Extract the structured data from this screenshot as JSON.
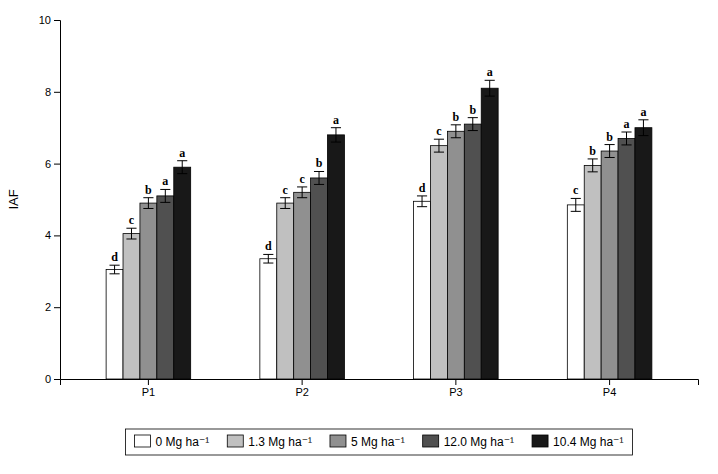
{
  "chart_data": {
    "type": "bar",
    "categories": [
      "P1",
      "P2",
      "P3",
      "P4"
    ],
    "ylabel": "IAF",
    "ylim": [
      0,
      10
    ],
    "yticks": [
      0,
      2,
      4,
      6,
      8,
      10
    ],
    "grid": false,
    "legend": "bottom",
    "series": [
      {
        "name": "0 Mg ha⁻¹",
        "color": "#FFFFFF",
        "values": [
          3.05,
          3.35,
          4.95,
          4.85
        ],
        "errors": [
          0.12,
          0.12,
          0.15,
          0.18
        ],
        "annotations": [
          "d",
          "d",
          "d",
          "c"
        ]
      },
      {
        "name": "1.3 Mg ha⁻¹",
        "color": "#C0C0C0",
        "values": [
          4.05,
          4.9,
          6.5,
          5.95
        ],
        "errors": [
          0.15,
          0.15,
          0.18,
          0.18
        ],
        "annotations": [
          "c",
          "c",
          "c",
          "b"
        ]
      },
      {
        "name": "5 Mg ha⁻¹",
        "color": "#909090",
        "values": [
          4.9,
          5.2,
          6.9,
          6.35
        ],
        "errors": [
          0.15,
          0.15,
          0.18,
          0.18
        ],
        "annotations": [
          "b",
          "c",
          "b",
          "b"
        ]
      },
      {
        "name": "12.0 Mg ha⁻¹",
        "color": "#505050",
        "values": [
          5.1,
          5.6,
          7.1,
          6.7
        ],
        "errors": [
          0.18,
          0.18,
          0.18,
          0.18
        ],
        "annotations": [
          "a",
          "b",
          "b",
          "a"
        ]
      },
      {
        "name": "10.4 Mg ha⁻¹",
        "color": "#181818",
        "values": [
          5.9,
          6.8,
          8.1,
          7.0
        ],
        "errors": [
          0.18,
          0.2,
          0.22,
          0.22
        ],
        "annotations": [
          "a",
          "a",
          "a",
          "a"
        ]
      }
    ]
  }
}
